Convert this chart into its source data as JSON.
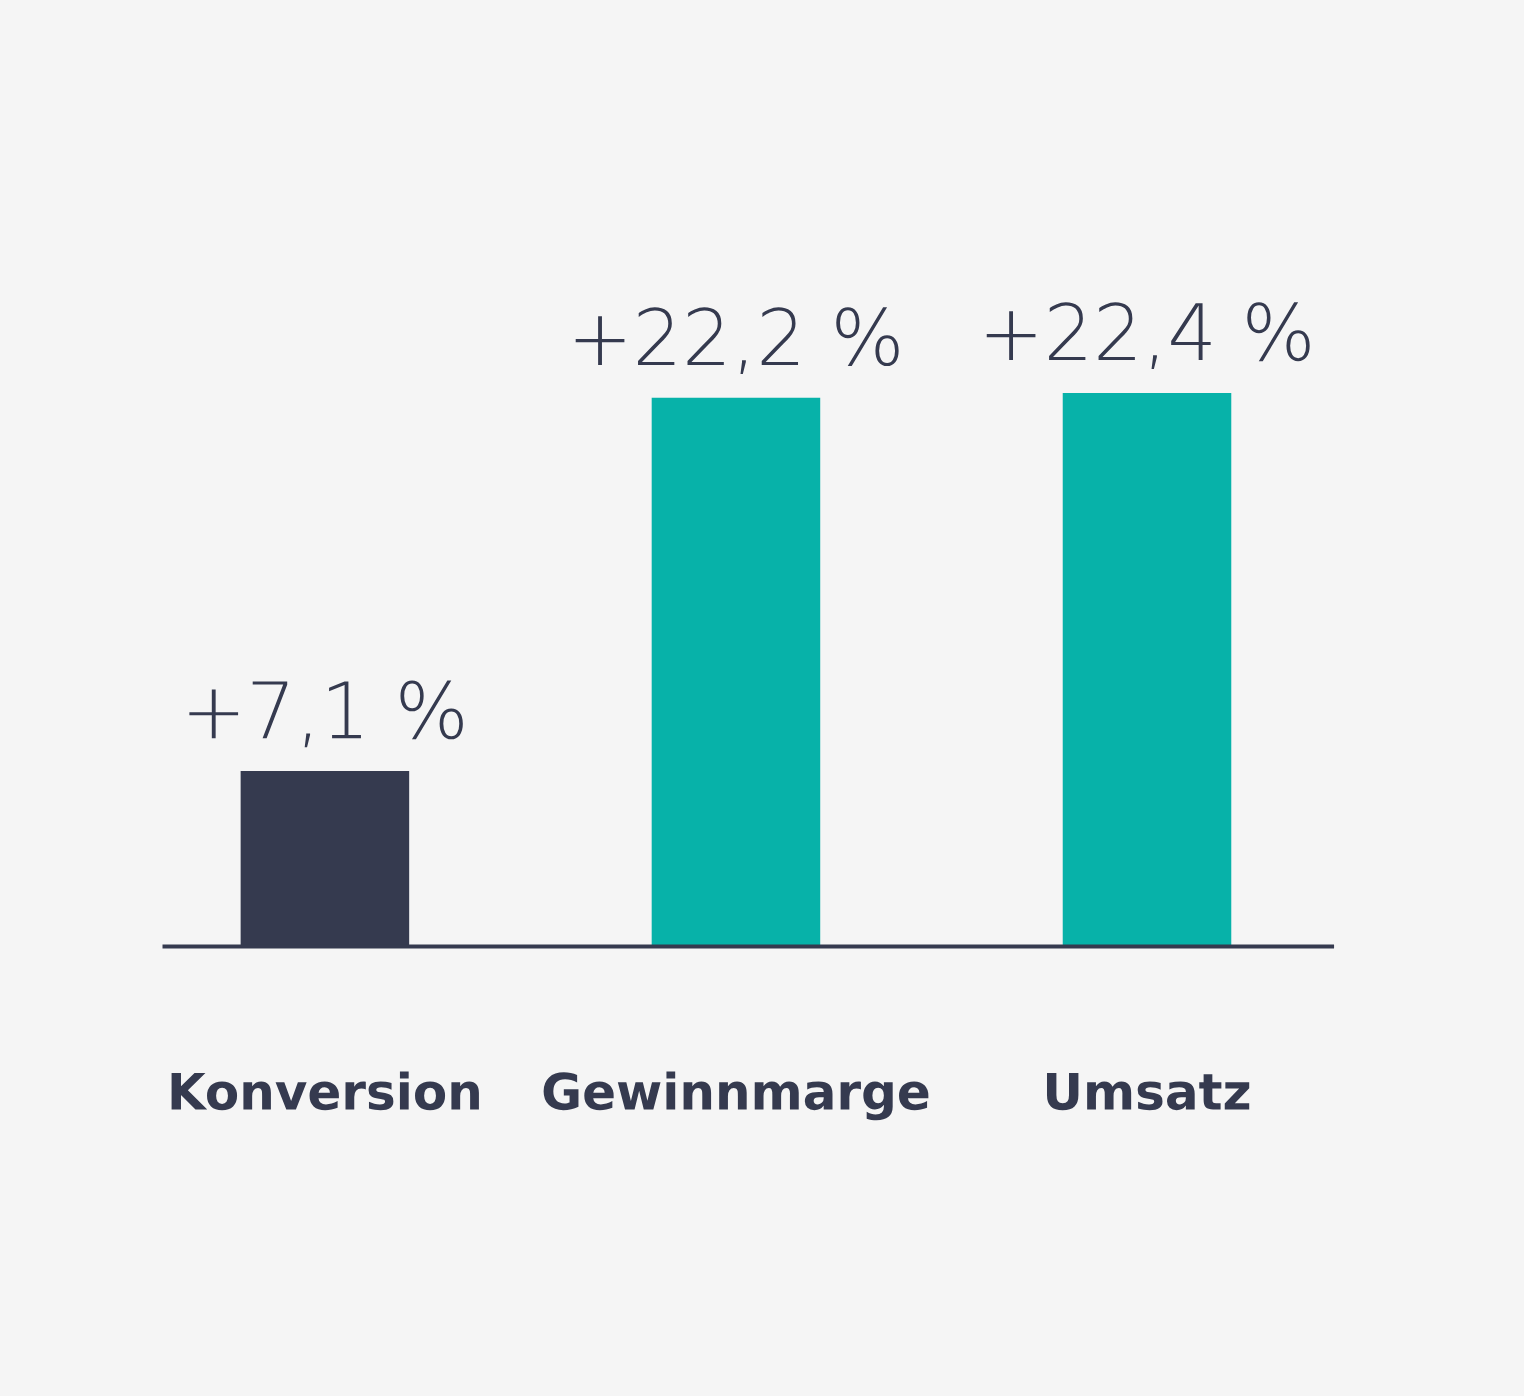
{
  "chart_data": {
    "type": "bar",
    "categories": [
      "Konversion",
      "Gewinnmarge",
      "Umsatz"
    ],
    "values": [
      7.1,
      22.2,
      22.4
    ],
    "colors": [
      "#353a4f",
      "#07b2a9",
      "#07b2a9"
    ],
    "value_labels": [
      "+7,1 %",
      "+22,2 %",
      "+22,4 %"
    ],
    "grid": false,
    "legend": false
  }
}
